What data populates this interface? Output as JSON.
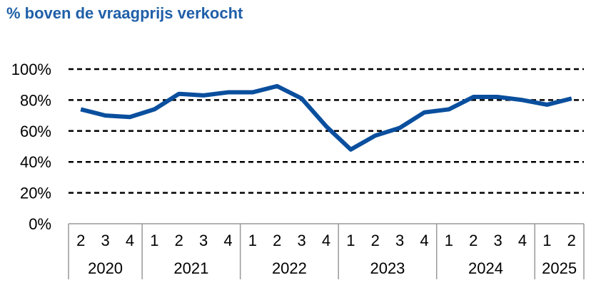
{
  "title": "% boven de vraagprijs verkocht",
  "colors": {
    "line": "#0a4f9e",
    "title": "#1f5fa8",
    "grid": "#000000",
    "axis": "#999999"
  },
  "chart_data": {
    "type": "line",
    "title": "% boven de vraagprijs verkocht",
    "xlabel": "",
    "ylabel": "",
    "ylim": [
      0,
      100
    ],
    "yticks": [
      "0%",
      "20%",
      "40%",
      "60%",
      "80%",
      "100%"
    ],
    "grid": "dashed horizontal",
    "legend": "none",
    "categories": [
      {
        "quarter": "2",
        "year": "2020"
      },
      {
        "quarter": "3",
        "year": "2020"
      },
      {
        "quarter": "4",
        "year": "2020"
      },
      {
        "quarter": "1",
        "year": "2021"
      },
      {
        "quarter": "2",
        "year": "2021"
      },
      {
        "quarter": "3",
        "year": "2021"
      },
      {
        "quarter": "4",
        "year": "2021"
      },
      {
        "quarter": "1",
        "year": "2022"
      },
      {
        "quarter": "2",
        "year": "2022"
      },
      {
        "quarter": "3",
        "year": "2022"
      },
      {
        "quarter": "4",
        "year": "2022"
      },
      {
        "quarter": "1",
        "year": "2023"
      },
      {
        "quarter": "2",
        "year": "2023"
      },
      {
        "quarter": "3",
        "year": "2023"
      },
      {
        "quarter": "4",
        "year": "2023"
      },
      {
        "quarter": "1",
        "year": "2024"
      },
      {
        "quarter": "2",
        "year": "2024"
      },
      {
        "quarter": "3",
        "year": "2024"
      },
      {
        "quarter": "4",
        "year": "2024"
      },
      {
        "quarter": "1",
        "year": "2025"
      },
      {
        "quarter": "2",
        "year": "2025"
      }
    ],
    "years": [
      "2020",
      "2021",
      "2022",
      "2023",
      "2024",
      "2025"
    ],
    "series": [
      {
        "values": [
          74,
          70,
          69,
          74,
          84,
          83,
          85,
          85,
          89,
          81,
          63,
          48,
          57,
          62,
          72,
          74,
          82,
          82,
          80,
          77,
          81
        ]
      }
    ]
  }
}
